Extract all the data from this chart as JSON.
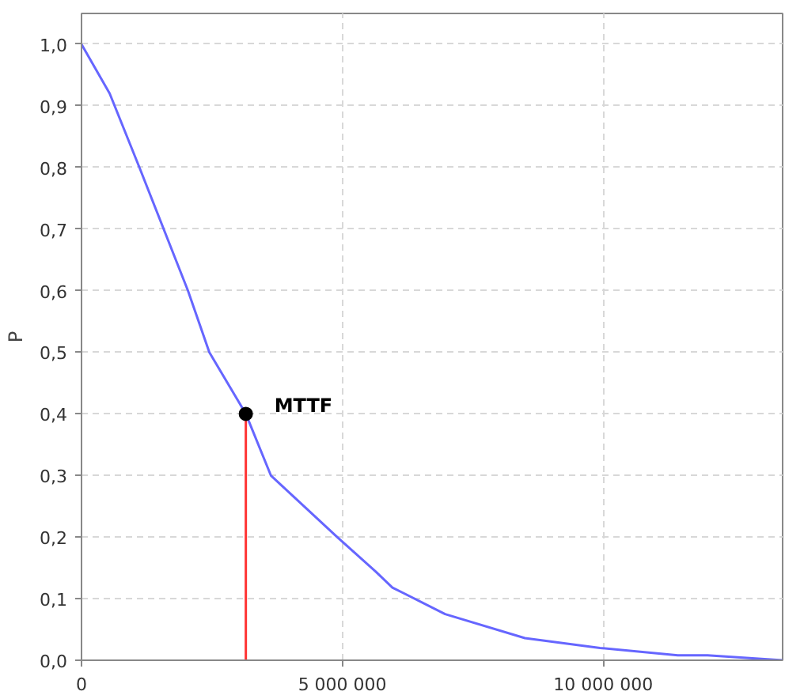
{
  "chart_data": {
    "type": "line",
    "ylabel": "P",
    "xlim": [
      0,
      13440000
    ],
    "ylim": [
      0,
      1.05
    ],
    "xticks": [
      {
        "value": 0,
        "label": "0"
      },
      {
        "value": 5000000,
        "label": "5 000 000"
      },
      {
        "value": 10000000,
        "label": "10 000 000"
      }
    ],
    "yticks": [
      {
        "value": 0,
        "label": "0,0"
      },
      {
        "value": 0.1,
        "label": "0,1"
      },
      {
        "value": 0.2,
        "label": "0,2"
      },
      {
        "value": 0.3,
        "label": "0,3"
      },
      {
        "value": 0.4,
        "label": "0,4"
      },
      {
        "value": 0.5,
        "label": "0,5"
      },
      {
        "value": 0.6,
        "label": "0,6"
      },
      {
        "value": 0.7,
        "label": "0,7"
      },
      {
        "value": 0.8,
        "label": "0,8"
      },
      {
        "value": 0.9,
        "label": "0,9"
      },
      {
        "value": 1.0,
        "label": "1,0"
      }
    ],
    "grid": true,
    "line_style": "solid",
    "series": [
      {
        "type": "line",
        "color": "#6666ff",
        "x": [
          0,
          540000,
          1110000,
          2040000,
          2450000,
          3150000,
          3630000,
          4900000,
          5640000,
          5960000,
          6970000,
          8500000,
          9940000,
          11430000,
          12000000,
          13440000
        ],
        "values": [
          1.0,
          0.92,
          0.8,
          0.6,
          0.5,
          0.4,
          0.3,
          0.2,
          0.144,
          0.118,
          0.075,
          0.036,
          0.02,
          0.008,
          0.008,
          0.0
        ]
      },
      {
        "color": "#ff3333",
        "x": [
          3150000,
          3150000
        ],
        "values": [
          0,
          0.4
        ]
      },
      {
        "type": "scatter",
        "color": "#000000",
        "marker": "circle",
        "x": [
          3150000
        ],
        "values": [
          0.4
        ]
      }
    ],
    "annotations": [
      "MTTF"
    ]
  }
}
